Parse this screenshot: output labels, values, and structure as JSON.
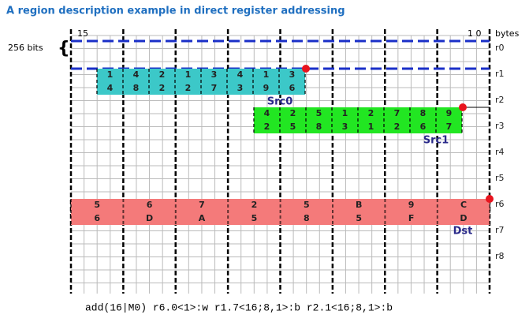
{
  "title": "A region description example in direct register addressing",
  "byte_labels": {
    "high": "15",
    "low": "1 0",
    "unit": "bytes"
  },
  "width_label": "256 bits",
  "registers": [
    "r0",
    "r1",
    "r2",
    "r3",
    "r4",
    "r5",
    "r6",
    "r7",
    "r8"
  ],
  "regions": [
    {
      "label": "Src0",
      "top": [
        "1",
        "4",
        "2",
        "1",
        "3",
        "4",
        "1",
        "3"
      ],
      "bottom": [
        "4",
        "8",
        "2",
        "2",
        "7",
        "3",
        "9",
        "6"
      ]
    },
    {
      "label": "Src1",
      "top": [
        "4",
        "2",
        "5",
        "1",
        "2",
        "7",
        "8",
        "9"
      ],
      "bottom": [
        "2",
        "5",
        "8",
        "3",
        "1",
        "2",
        "6",
        "7"
      ]
    },
    {
      "label": "Dst",
      "top": [
        "5",
        "6",
        "7",
        "2",
        "5",
        "B",
        "9",
        "C"
      ],
      "bottom": [
        "6",
        "D",
        "A",
        "5",
        "8",
        "5",
        "F",
        "D"
      ]
    }
  ],
  "instruction": "add(16|M0) r6.0<1>:w r1.7<16;8,1>:b r2.1<16;8,1>:b"
}
